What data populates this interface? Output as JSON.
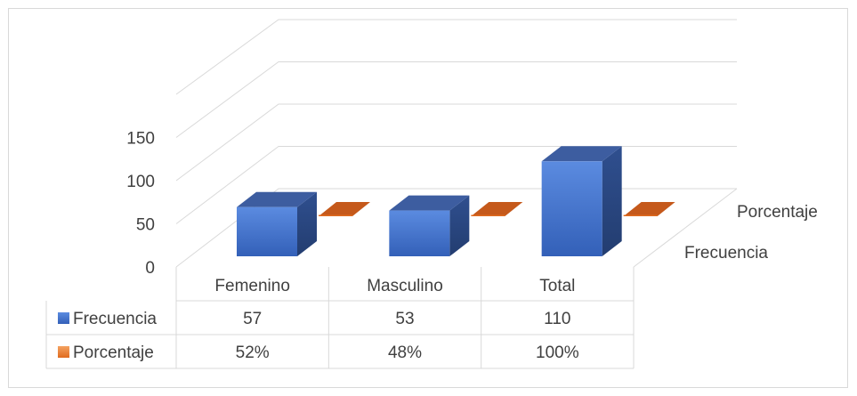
{
  "chart_data": {
    "type": "bar",
    "subtype": "3d-column-with-data-table",
    "title": "",
    "categories": [
      "Femenino",
      "Masculino",
      "Total"
    ],
    "series": [
      {
        "name": "Frecuencia",
        "values": [
          57,
          53,
          110
        ],
        "labels": [
          "57",
          "53",
          "110"
        ],
        "color": "#4472c4"
      },
      {
        "name": "Porcentaje",
        "values": [
          0.52,
          0.48,
          1.0
        ],
        "labels": [
          "52%",
          "48%",
          "100%"
        ],
        "color": "#ed7d31"
      }
    ],
    "depth_labels": [
      "Porcentaje",
      "Frecuencia"
    ],
    "y_ticks": [
      "0",
      "50",
      "100",
      "150"
    ],
    "ylim": [
      0,
      150
    ],
    "grid": true,
    "legend": "data-table"
  }
}
